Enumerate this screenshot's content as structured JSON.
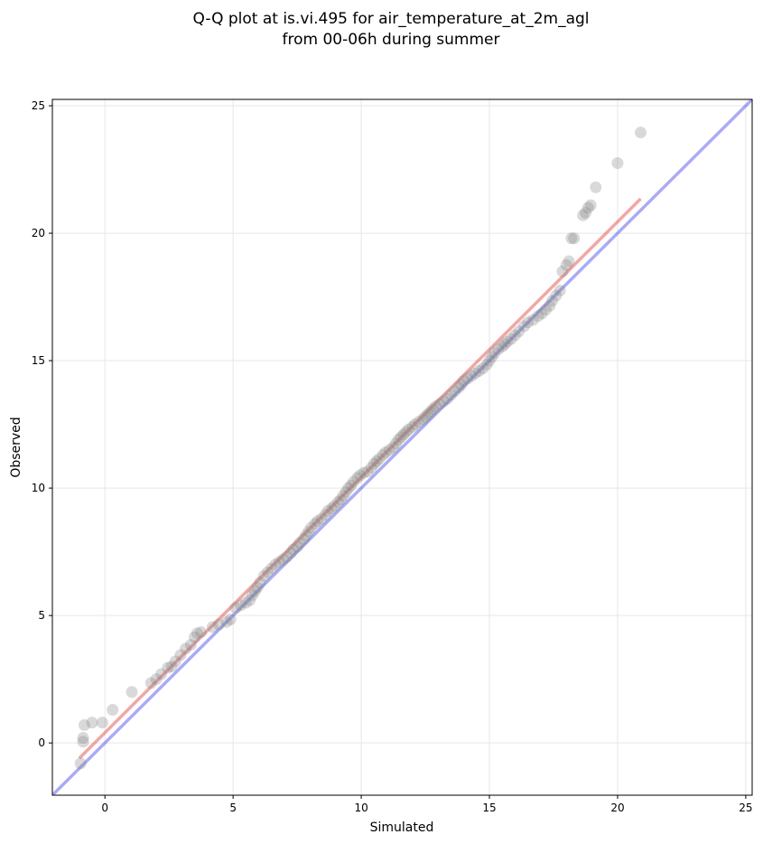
{
  "chart_data": {
    "type": "scatter",
    "title": [
      "Q-Q plot at is.vi.495 for air_temperature_at_2m_agl",
      "from 00-06h during summer"
    ],
    "xlabel": "Simulated",
    "ylabel": "Observed",
    "xlim": [
      -2.05,
      25.25
    ],
    "ylim": [
      -2.05,
      25.25
    ],
    "xticks": [
      0,
      5,
      10,
      15,
      20,
      25
    ],
    "yticks": [
      0,
      5,
      10,
      15,
      20,
      25
    ],
    "grid": true,
    "colors": {
      "points": "#808080",
      "points_core": "#3a0f0f",
      "identity_line": "#0000dd",
      "fit_line": "#e33a3a"
    },
    "series": [
      {
        "kind": "points",
        "points": [
          [
            -0.95,
            -0.8
          ],
          [
            -0.85,
            0.05
          ],
          [
            -0.85,
            0.2
          ],
          [
            -0.8,
            0.7
          ],
          [
            -0.5,
            0.8
          ],
          [
            -0.1,
            0.8
          ],
          [
            0.3,
            1.3
          ],
          [
            1.05,
            2.0
          ],
          [
            1.8,
            2.35
          ],
          [
            2.0,
            2.5
          ],
          [
            2.2,
            2.7
          ],
          [
            2.45,
            2.95
          ],
          [
            2.6,
            3.0
          ],
          [
            2.75,
            3.2
          ],
          [
            2.95,
            3.45
          ],
          [
            3.15,
            3.7
          ],
          [
            3.35,
            3.85
          ],
          [
            3.5,
            4.15
          ],
          [
            3.6,
            4.3
          ],
          [
            3.75,
            4.35
          ],
          [
            4.2,
            4.55
          ],
          [
            4.45,
            4.65
          ],
          [
            4.75,
            4.75
          ],
          [
            4.9,
            4.85
          ],
          [
            5.1,
            5.3
          ],
          [
            5.3,
            5.4
          ],
          [
            5.5,
            5.5
          ],
          [
            5.65,
            5.6
          ],
          [
            5.75,
            5.8
          ],
          [
            5.85,
            5.95
          ],
          [
            5.95,
            6.1
          ],
          [
            6.05,
            6.3
          ],
          [
            6.2,
            6.55
          ],
          [
            6.35,
            6.7
          ],
          [
            6.5,
            6.85
          ],
          [
            6.65,
            7.0
          ],
          [
            6.8,
            7.1
          ],
          [
            6.95,
            7.2
          ],
          [
            7.1,
            7.3
          ],
          [
            7.25,
            7.45
          ],
          [
            7.35,
            7.6
          ],
          [
            7.5,
            7.7
          ],
          [
            7.6,
            7.85
          ],
          [
            7.75,
            8.0
          ],
          [
            7.85,
            8.15
          ],
          [
            7.95,
            8.3
          ],
          [
            8.05,
            8.45
          ],
          [
            8.2,
            8.6
          ],
          [
            8.3,
            8.7
          ],
          [
            8.45,
            8.8
          ],
          [
            8.6,
            8.95
          ],
          [
            8.7,
            9.1
          ],
          [
            8.85,
            9.2
          ],
          [
            8.95,
            9.3
          ],
          [
            9.1,
            9.45
          ],
          [
            9.2,
            9.55
          ],
          [
            9.3,
            9.7
          ],
          [
            9.4,
            9.85
          ],
          [
            9.5,
            10.0
          ],
          [
            9.6,
            10.1
          ],
          [
            9.7,
            10.25
          ],
          [
            9.85,
            10.4
          ],
          [
            9.95,
            10.5
          ],
          [
            10.1,
            10.6
          ],
          [
            10.25,
            10.65
          ],
          [
            10.4,
            10.8
          ],
          [
            10.5,
            10.95
          ],
          [
            10.6,
            11.05
          ],
          [
            10.7,
            11.15
          ],
          [
            10.85,
            11.3
          ],
          [
            10.95,
            11.4
          ],
          [
            11.1,
            11.5
          ],
          [
            11.25,
            11.6
          ],
          [
            11.35,
            11.75
          ],
          [
            11.45,
            11.9
          ],
          [
            11.55,
            12.0
          ],
          [
            11.65,
            12.1
          ],
          [
            11.75,
            12.2
          ],
          [
            11.85,
            12.3
          ],
          [
            12.0,
            12.4
          ],
          [
            12.1,
            12.5
          ],
          [
            12.25,
            12.6
          ],
          [
            12.4,
            12.7
          ],
          [
            12.5,
            12.8
          ],
          [
            12.6,
            12.9
          ],
          [
            12.7,
            13.0
          ],
          [
            12.8,
            13.1
          ],
          [
            12.9,
            13.2
          ],
          [
            13.05,
            13.3
          ],
          [
            13.2,
            13.4
          ],
          [
            13.35,
            13.5
          ],
          [
            13.5,
            13.65
          ],
          [
            13.65,
            13.8
          ],
          [
            13.8,
            13.95
          ],
          [
            13.9,
            14.05
          ],
          [
            14.0,
            14.2
          ],
          [
            14.15,
            14.3
          ],
          [
            14.3,
            14.4
          ],
          [
            14.45,
            14.5
          ],
          [
            14.6,
            14.6
          ],
          [
            14.75,
            14.7
          ],
          [
            14.9,
            14.85
          ],
          [
            15.0,
            15.0
          ],
          [
            15.1,
            15.15
          ],
          [
            15.2,
            15.3
          ],
          [
            15.35,
            15.45
          ],
          [
            15.5,
            15.55
          ],
          [
            15.6,
            15.65
          ],
          [
            15.7,
            15.75
          ],
          [
            15.85,
            15.85
          ],
          [
            16.0,
            16.0
          ],
          [
            16.15,
            16.15
          ],
          [
            16.35,
            16.35
          ],
          [
            16.5,
            16.5
          ],
          [
            16.7,
            16.6
          ],
          [
            16.9,
            16.75
          ],
          [
            17.05,
            16.85
          ],
          [
            17.2,
            17.0
          ],
          [
            17.35,
            17.15
          ],
          [
            17.45,
            17.35
          ],
          [
            17.6,
            17.55
          ],
          [
            17.75,
            17.75
          ],
          [
            17.85,
            18.5
          ],
          [
            18.0,
            18.75
          ],
          [
            18.1,
            18.9
          ],
          [
            18.2,
            19.8
          ],
          [
            18.3,
            19.8
          ],
          [
            18.65,
            20.7
          ],
          [
            18.75,
            20.8
          ],
          [
            18.85,
            21.0
          ],
          [
            18.95,
            21.1
          ],
          [
            19.15,
            21.8
          ],
          [
            20.0,
            22.75
          ],
          [
            20.9,
            23.95
          ]
        ]
      },
      {
        "kind": "line",
        "points": [
          [
            -2.05,
            -2.05
          ],
          [
            25.25,
            25.25
          ]
        ]
      },
      {
        "kind": "line",
        "points": [
          [
            -1.0,
            -0.6
          ],
          [
            20.9,
            21.35
          ]
        ]
      }
    ]
  }
}
